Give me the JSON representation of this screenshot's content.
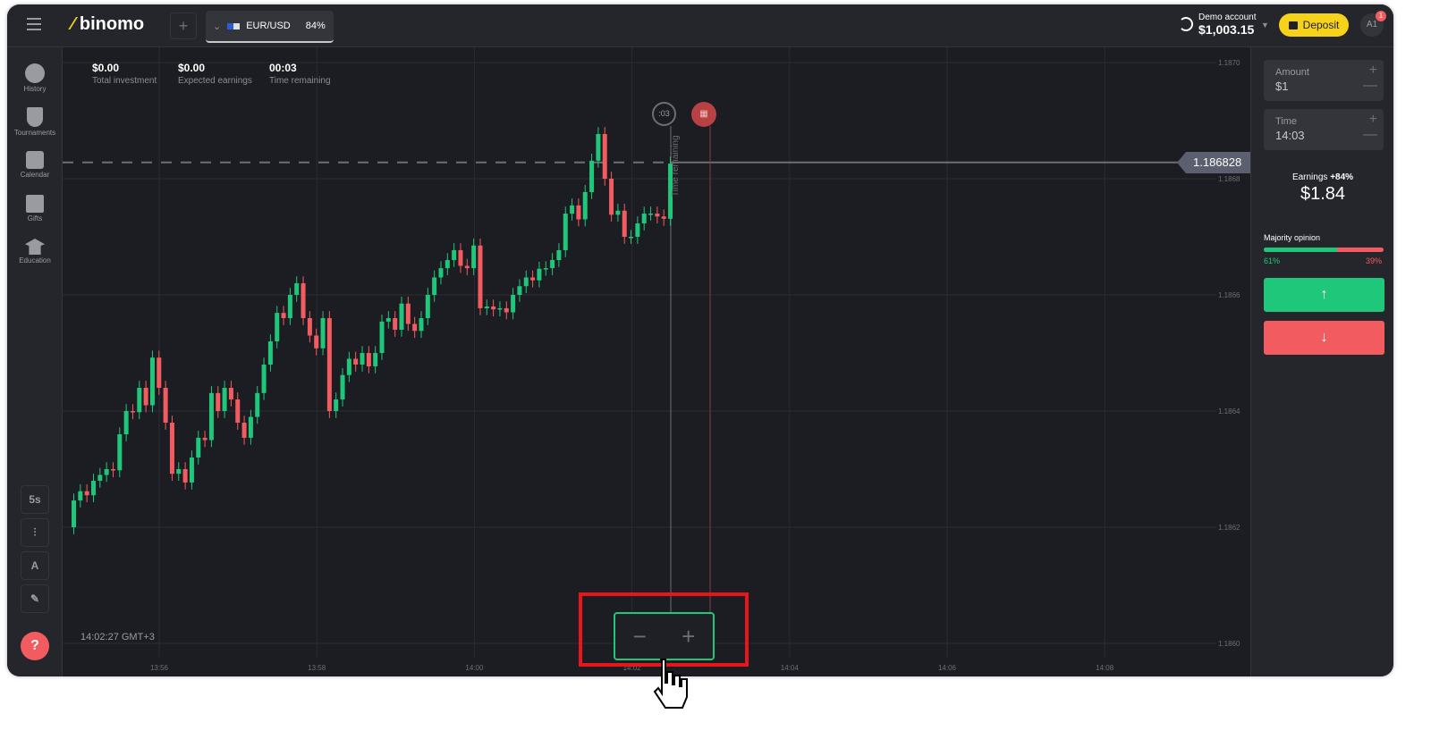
{
  "header": {
    "logo": "binomo",
    "asset": "EUR/USD",
    "payout": "84%",
    "account_label": "Demo account",
    "balance": "$1,003.15",
    "deposit": "Deposit",
    "avatar": "A1",
    "notification_count": "1"
  },
  "sidebar": {
    "items": [
      {
        "label": "History",
        "icon": "clock-icon"
      },
      {
        "label": "Tournaments",
        "icon": "trophy-icon"
      },
      {
        "label": "Calendar",
        "icon": "calendar-icon"
      },
      {
        "label": "Gifts",
        "icon": "gift-icon"
      },
      {
        "label": "Education",
        "icon": "graduation-cap-icon"
      }
    ],
    "tools": {
      "timeframe": "5s"
    },
    "help": "?"
  },
  "stats": [
    {
      "value": "$0.00",
      "label": "Total investment"
    },
    {
      "value": "$0.00",
      "label": "Expected earnings"
    },
    {
      "value": "00:03",
      "label": "Time remaining"
    }
  ],
  "chart": {
    "timer": ":03",
    "time_remaining_label": "Time remaining",
    "current_price": "1.186828",
    "clock": "14:02:27 GMT+3",
    "zoom_out": "−",
    "zoom_in": "+",
    "colors": {
      "up": "#1fc77a",
      "down": "#f25c60",
      "highlight": "#e8151b"
    }
  },
  "chart_data": {
    "type": "candlestick",
    "ylim": [
      1.186,
      1.187
    ],
    "yticks": [
      "1.1870",
      "1.1868",
      "1.1866",
      "1.1864",
      "1.1862",
      "1.1860"
    ],
    "xticks": [
      "13:56",
      "13:58",
      "14:00",
      "14:02",
      "14:04",
      "14:06",
      "14:08"
    ],
    "first_open": 1.1862,
    "closes": [
      1.186246,
      1.186262,
      1.186255,
      1.18628,
      1.18629,
      1.1863,
      1.186298,
      1.18636,
      1.1864,
      1.186398,
      1.18644,
      1.18641,
      1.186492,
      1.18644,
      1.18638,
      1.186292,
      1.1863,
      1.186277,
      1.18632,
      1.186354,
      1.18635,
      1.186431,
      1.1864,
      1.18644,
      1.18642,
      1.18638,
      1.186354,
      1.18639,
      1.186431,
      1.18648,
      1.18652,
      1.186569,
      1.18656,
      1.1866,
      1.18662,
      1.18656,
      1.18653,
      1.186508,
      1.18656,
      1.1864,
      1.18642,
      1.186462,
      1.18649,
      1.18648,
      1.1865,
      1.186477,
      1.1865,
      1.186554,
      1.18656,
      1.18654,
      1.186585,
      1.18655,
      1.186538,
      1.18656,
      1.1866,
      1.18663,
      1.186646,
      1.18666,
      1.186677,
      1.18665,
      1.186646,
      1.186685,
      1.186577,
      1.18658,
      1.186575,
      1.186577,
      1.18657,
      1.1866,
      1.186615,
      1.18663,
      1.186625,
      1.186645,
      1.186646,
      1.18666,
      1.186677,
      1.18674,
      1.186754,
      1.18673,
      1.186777,
      1.186831,
      1.186877,
      1.1868,
      1.186738,
      1.186745,
      1.1867,
      1.1867,
      1.186723,
      1.18674,
      1.18674,
      1.186735,
      1.186731,
      1.186826
    ]
  },
  "trade_panel": {
    "amount_label": "Amount",
    "amount": "$1",
    "time_label": "Time",
    "time": "14:03",
    "earnings_label": "Earnings",
    "earnings_pct": "+84%",
    "earnings": "$1.84",
    "majority_label": "Majority opinion",
    "up_pct": "61%",
    "down_pct": "39%",
    "up_share": 0.61
  }
}
